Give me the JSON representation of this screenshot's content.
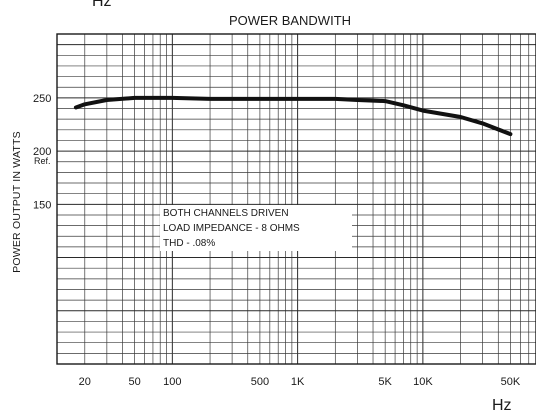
{
  "chart_data": {
    "type": "line",
    "title": "POWER BANDWITH",
    "xlabel": "Hz",
    "ylabel": "POWER OUTPUT IN WATTS",
    "x_scale": "log",
    "xlim": [
      12,
      80000
    ],
    "ylim": [
      0,
      310
    ],
    "x_ticks": [
      {
        "label": "20",
        "value": 20
      },
      {
        "label": "50",
        "value": 50
      },
      {
        "label": "100",
        "value": 100
      },
      {
        "label": "500",
        "value": 500
      },
      {
        "label": "1K",
        "value": 1000
      },
      {
        "label": "5K",
        "value": 5000
      },
      {
        "label": "10K",
        "value": 10000
      },
      {
        "label": "50K",
        "value": 50000
      }
    ],
    "y_ticks": [
      {
        "label": "250",
        "value": 250
      },
      {
        "label": "200",
        "value": 200,
        "sublabel": "Ref."
      },
      {
        "label": "150",
        "value": 150
      }
    ],
    "top_corner_label": "Hz",
    "grid": true,
    "series": [
      {
        "x": [
          17,
          20,
          30,
          50,
          70,
          100,
          200,
          500,
          1000,
          2000,
          3000,
          5000,
          7000,
          10000,
          20000,
          30000,
          50000
        ],
        "y": [
          241,
          244,
          248,
          250,
          250,
          250,
          249,
          249,
          249,
          249,
          248,
          247,
          243,
          238,
          232,
          226,
          216
        ]
      }
    ],
    "annotations": [
      "BOTH CHANNELS DRIVEN",
      "LOAD IMPEDANCE - 8 OHMS",
      "THD - .08%"
    ]
  }
}
